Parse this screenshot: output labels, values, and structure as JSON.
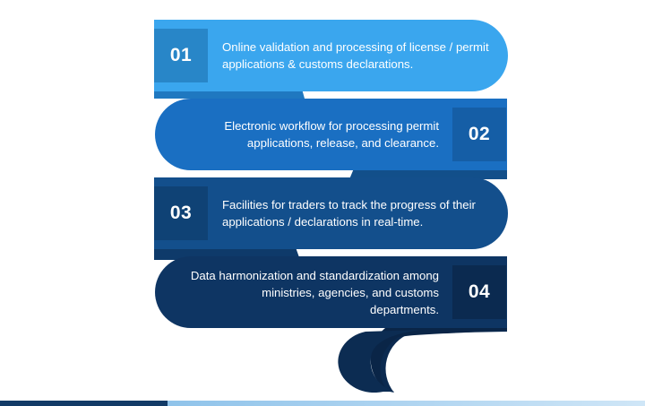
{
  "steps": [
    {
      "number": "01",
      "text": "Online validation and processing of license / permit applications & customs declarations.",
      "color": "#3aa6ee",
      "badge_color": "#2886c8"
    },
    {
      "number": "02",
      "text": "Electronic workflow for processing permit applications, release, and clearance.",
      "color": "#1a6fc2",
      "badge_color": "#155ea6"
    },
    {
      "number": "03",
      "text": "Facilities for traders to track the progress of their applications / declarations in real-time.",
      "color": "#134f8c",
      "badge_color": "#0f4275"
    },
    {
      "number": "04",
      "text": "Data harmonization and standardization among ministries, agencies, and customs departments.",
      "color": "#0e3563",
      "badge_color": "#0b2a50"
    }
  ],
  "colors": {
    "background": "#ffffff",
    "text": "#ffffff",
    "band_dark": "#123a66",
    "band_light": "#8fc3ea"
  }
}
